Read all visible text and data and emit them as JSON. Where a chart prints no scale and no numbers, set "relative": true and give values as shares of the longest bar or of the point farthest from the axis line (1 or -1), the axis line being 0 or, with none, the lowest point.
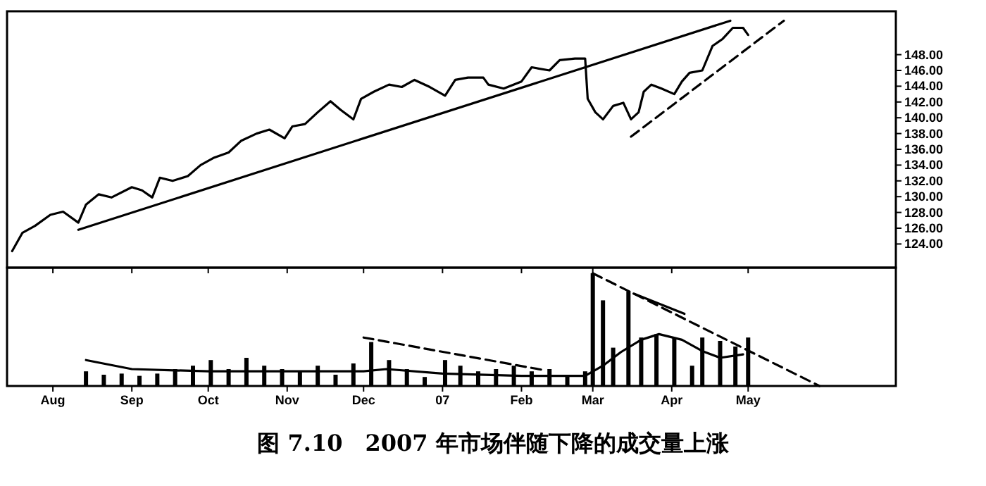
{
  "chart_data": [
    {
      "type": "line",
      "xlim": [
        "2006-07-14",
        "2007-06-28"
      ],
      "ylim": [
        121,
        153.5
      ],
      "yticks": [
        {
          "value": 124,
          "label": "124.00"
        },
        {
          "value": 126,
          "label": "126.00"
        },
        {
          "value": 128,
          "label": "128.00"
        },
        {
          "value": 130,
          "label": "130.00"
        },
        {
          "value": 132,
          "label": "132.00"
        },
        {
          "value": 134,
          "label": "134.00"
        },
        {
          "value": 136,
          "label": "136.00"
        },
        {
          "value": 138,
          "label": "138.00"
        },
        {
          "value": 140,
          "label": "140.00"
        },
        {
          "value": 142,
          "label": "142.00"
        },
        {
          "value": 144,
          "label": "144.00"
        },
        {
          "value": 146,
          "label": "146.00"
        },
        {
          "value": 148,
          "label": "148.00"
        }
      ],
      "xticks": [
        {
          "value": "2006-08-01",
          "label": null
        },
        {
          "value": "2006-09-01",
          "label": null
        },
        {
          "value": "2006-10-01",
          "label": null
        },
        {
          "value": "2006-11-01",
          "label": null
        },
        {
          "value": "2006-12-01",
          "label": null
        },
        {
          "value": "2007-01-01",
          "label": null
        },
        {
          "value": "2007-02-01",
          "label": null
        },
        {
          "value": "2007-03-01",
          "label": null
        },
        {
          "value": "2007-04-01",
          "label": null
        },
        {
          "value": "2007-05-01",
          "label": null
        }
      ],
      "tick_labels": "y",
      "series": [
        {
          "color": "#000000",
          "line_style": "solid",
          "x": [
            "2006-07-16",
            "2006-07-20",
            "2006-07-25",
            "2006-07-31",
            "2006-08-05",
            "2006-08-11",
            "2006-08-14",
            "2006-08-19",
            "2006-08-24",
            "2006-09-01",
            "2006-09-05",
            "2006-09-09",
            "2006-09-12",
            "2006-09-17",
            "2006-09-23",
            "2006-09-28",
            "2006-10-03",
            "2006-10-09",
            "2006-10-14",
            "2006-10-20",
            "2006-10-25",
            "2006-10-31",
            "2006-11-03",
            "2006-11-08",
            "2006-11-13",
            "2006-11-18",
            "2006-11-22",
            "2006-11-27",
            "2006-11-30",
            "2006-12-05",
            "2006-12-11",
            "2006-12-16",
            "2006-12-21",
            "2006-12-27",
            "2007-01-02",
            "2007-01-06",
            "2007-01-11",
            "2007-01-17",
            "2007-01-19",
            "2007-01-25",
            "2007-02-01",
            "2007-02-05",
            "2007-02-12",
            "2007-02-16",
            "2007-02-22",
            "2007-02-26",
            "2007-02-27",
            "2007-03-02",
            "2007-03-05",
            "2007-03-09",
            "2007-03-13",
            "2007-03-16",
            "2007-03-19",
            "2007-03-21",
            "2007-03-24",
            "2007-03-28",
            "2007-04-02",
            "2007-04-05",
            "2007-04-08",
            "2007-04-13",
            "2007-04-17",
            "2007-04-21",
            "2007-04-25",
            "2007-04-29",
            "2007-05-01"
          ],
          "values": [
            123.1,
            125.4,
            126.3,
            127.7,
            128.1,
            126.7,
            129,
            130.3,
            129.9,
            131.2,
            130.8,
            129.9,
            132.4,
            132,
            132.6,
            134,
            134.9,
            135.6,
            137.1,
            138,
            138.5,
            137.4,
            138.9,
            139.2,
            140.7,
            142.1,
            141,
            139.8,
            142.4,
            143.3,
            144.2,
            143.9,
            144.8,
            143.9,
            142.8,
            144.8,
            145.1,
            145.1,
            144.2,
            143.7,
            144.6,
            146.4,
            146,
            147.3,
            147.5,
            147.5,
            142.4,
            140.7,
            139.8,
            141.5,
            141.9,
            139.8,
            140.7,
            143.3,
            144.2,
            143.7,
            143,
            144.6,
            145.7,
            146,
            149.1,
            150,
            151.4,
            151.4,
            150.5
          ]
        },
        {
          "color": "#000000",
          "line_style": "solid",
          "x": [
            "2006-08-11",
            "2007-04-24"
          ],
          "values": [
            125.8,
            152.3
          ]
        },
        {
          "color": "#000000",
          "line_style": "dashed",
          "x": [
            "2007-03-16",
            "2007-05-15"
          ],
          "values": [
            137.6,
            152.3
          ]
        }
      ]
    },
    {
      "type": "bar",
      "relative": true,
      "xlim": [
        "2006-07-14",
        "2007-06-28"
      ],
      "xticks": [
        {
          "value": "2006-08-01",
          "label": "Aug"
        },
        {
          "value": "2006-09-01",
          "label": "Sep"
        },
        {
          "value": "2006-10-01",
          "label": "Oct"
        },
        {
          "value": "2006-11-01",
          "label": "Nov"
        },
        {
          "value": "2006-12-01",
          "label": "Dec"
        },
        {
          "value": "2007-01-01",
          "label": "07"
        },
        {
          "value": "2007-02-01",
          "label": "Feb"
        },
        {
          "value": "2007-03-01",
          "label": "Mar"
        },
        {
          "value": "2007-04-01",
          "label": "Apr"
        },
        {
          "value": "2007-05-01",
          "label": "May"
        }
      ],
      "tick_labels": "x",
      "annotations": [
        "图 7.10　2007 年市场伴随下降的成交量上涨"
      ],
      "series": [
        {
          "color": "#000000",
          "x": [
            "2006-08-14",
            "2006-08-21",
            "2006-08-28",
            "2006-09-04",
            "2006-09-11",
            "2006-09-18",
            "2006-09-25",
            "2006-10-02",
            "2006-10-09",
            "2006-10-16",
            "2006-10-23",
            "2006-10-30",
            "2006-11-06",
            "2006-11-13",
            "2006-11-20",
            "2006-11-27",
            "2006-12-04",
            "2006-12-11",
            "2006-12-18",
            "2006-12-25",
            "2007-01-02",
            "2007-01-08",
            "2007-01-15",
            "2007-01-22",
            "2007-01-29",
            "2007-02-05",
            "2007-02-12",
            "2007-02-19",
            "2007-02-26",
            "2007-03-01",
            "2007-03-05",
            "2007-03-09",
            "2007-03-15",
            "2007-03-20",
            "2007-03-26",
            "2007-04-02",
            "2007-04-09",
            "2007-04-13",
            "2007-04-20",
            "2007-04-26",
            "2007-05-01"
          ],
          "values": [
            0.13,
            0.1,
            0.11,
            0.09,
            0.11,
            0.15,
            0.18,
            0.23,
            0.15,
            0.25,
            0.18,
            0.15,
            0.13,
            0.18,
            0.1,
            0.2,
            0.39,
            0.23,
            0.15,
            0.08,
            0.23,
            0.18,
            0.13,
            0.15,
            0.18,
            0.13,
            0.15,
            0.1,
            0.13,
            1,
            0.76,
            0.34,
            0.84,
            0.43,
            0.46,
            0.43,
            0.18,
            0.43,
            0.4,
            0.35,
            0.43
          ]
        },
        {
          "type": "line",
          "color": "#000000",
          "line_style": "solid",
          "x": [
            "2006-08-14",
            "2006-09-01",
            "2006-10-01",
            "2006-11-01",
            "2006-12-01",
            "2006-12-10",
            "2007-01-01",
            "2007-02-01",
            "2007-02-26",
            "2007-03-05",
            "2007-03-12",
            "2007-03-20",
            "2007-03-27",
            "2007-04-05",
            "2007-04-13",
            "2007-04-20",
            "2007-04-29"
          ],
          "values": [
            0.23,
            0.15,
            0.13,
            0.13,
            0.13,
            0.15,
            0.11,
            0.09,
            0.09,
            0.18,
            0.3,
            0.41,
            0.46,
            0.41,
            0.31,
            0.25,
            0.28
          ]
        },
        {
          "type": "line",
          "color": "#000000",
          "line_style": "dashed",
          "x": [
            "2006-12-01",
            "2007-02-10"
          ],
          "values": [
            0.43,
            0.14
          ]
        },
        {
          "type": "line",
          "color": "#000000",
          "line_style": "dashed",
          "x": [
            "2007-03-01",
            "2007-05-29"
          ],
          "values": [
            1,
            0
          ]
        },
        {
          "type": "line",
          "color": "#000000",
          "line_style": "solid",
          "x": [
            "2007-03-17",
            "2007-04-06"
          ],
          "values": [
            0.82,
            0.64
          ]
        }
      ]
    }
  ]
}
